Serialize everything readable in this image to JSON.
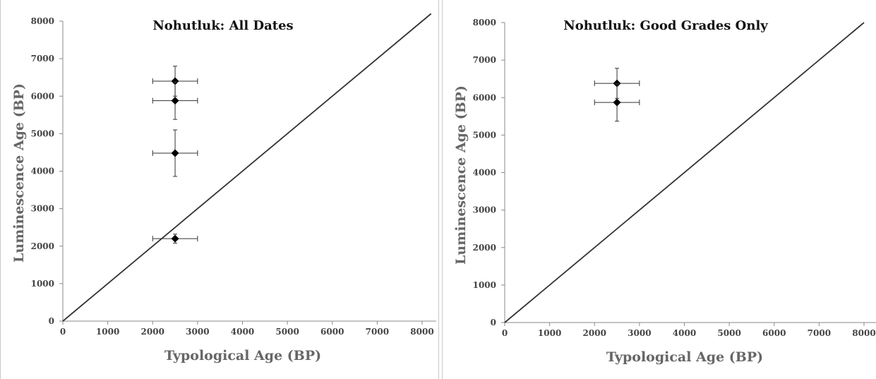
{
  "chart_data": [
    {
      "type": "scatter",
      "title": "Nohutluk: All Dates",
      "xlabel": "Typological Age (BP)",
      "ylabel": "Luminescence Age (BP)",
      "xlim": [
        0,
        8000
      ],
      "ylim": [
        0,
        8000
      ],
      "xticks": [
        "0",
        "1000",
        "2000",
        "3000",
        "4000",
        "5000",
        "6000",
        "7000",
        "8000"
      ],
      "yticks": [
        "0",
        "1000",
        "2000",
        "3000",
        "4000",
        "5000",
        "6000",
        "7000",
        "8000"
      ],
      "grid": false,
      "reference_line": {
        "x": [
          0,
          8200
        ],
        "y": [
          0,
          8200
        ]
      },
      "points": [
        {
          "x": 2500,
          "y": 6400,
          "x_err": 500,
          "y_err": 400
        },
        {
          "x": 2500,
          "y": 5880,
          "x_err": 500,
          "y_err": 500
        },
        {
          "x": 2500,
          "y": 4480,
          "x_err": 500,
          "y_err": 620
        },
        {
          "x": 2500,
          "y": 2200,
          "x_err": 500,
          "y_err": 120
        }
      ]
    },
    {
      "type": "scatter",
      "title": "Nohutluk: Good Grades Only",
      "xlabel": "Typological Age (BP)",
      "ylabel": "Luminescence Age (BP)",
      "xlim": [
        0,
        8000
      ],
      "ylim": [
        0,
        8000
      ],
      "xticks": [
        "0",
        "1000",
        "2000",
        "3000",
        "4000",
        "5000",
        "6000",
        "7000",
        "8000"
      ],
      "yticks": [
        "0",
        "1000",
        "2000",
        "3000",
        "4000",
        "5000",
        "6000",
        "7000",
        "8000"
      ],
      "grid": false,
      "reference_line": {
        "x": [
          0,
          8000
        ],
        "y": [
          0,
          8000
        ]
      },
      "points": [
        {
          "x": 2500,
          "y": 6380,
          "x_err": 500,
          "y_err": 400
        },
        {
          "x": 2500,
          "y": 5870,
          "x_err": 500,
          "y_err": 500
        }
      ]
    }
  ],
  "colors": {
    "marker": "#000000",
    "line": "#333333",
    "axis": "#8a8a8a",
    "error_bar": "#333333"
  }
}
